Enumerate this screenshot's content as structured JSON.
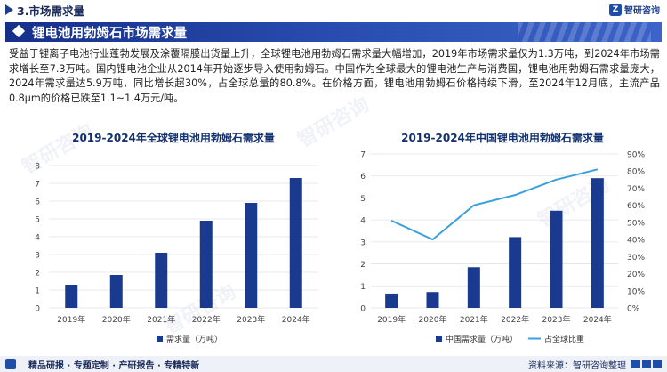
{
  "header": {
    "section_title": "3.市场需求量",
    "brand": "智研咨询",
    "banner_title": "锂电池用勃姆石市场需求量"
  },
  "paragraph": "受益于锂离子电池行业蓬勃发展及涂覆隔膜出货量上升，全球锂电池用勃姆石需求量大幅增加，2019年市场需求量仅为1.3万吨，到2024年市场需求增长至7.3万吨。国内锂电池企业从2014年开始逐步导入使用勃姆石。中国作为全球最大的锂电池生产与消费国，锂电池用勃姆石需求量庞大，2024年需求量达5.9万吨，同比增长超30%，占全球总量的80.8%。在价格方面，锂电池用勃姆石价格持续下滑，至2024年12月底，主流产品0.8μm的价格已跌至1.1~1.4万元/吨。",
  "chart_data": [
    {
      "type": "bar",
      "title": "2019-2024年全球锂电池用勃姆石需求量",
      "categories": [
        "2019年",
        "2020年",
        "2021年",
        "2022年",
        "2023年",
        "2024年"
      ],
      "series": [
        {
          "name": "需求量（万吨）",
          "values": [
            1.3,
            1.85,
            3.1,
            4.9,
            5.9,
            7.3
          ]
        }
      ],
      "ylim": [
        0,
        8
      ],
      "yticks": [
        "0",
        "1",
        "2",
        "3",
        "4",
        "5",
        "6",
        "7",
        "8"
      ],
      "color": "#1a3a8f"
    },
    {
      "type": "bar+line",
      "title": "2019-2024年中国锂电池用勃姆石需求量",
      "categories": [
        "2019年",
        "2020年",
        "2021年",
        "2022年",
        "2023年",
        "2024年"
      ],
      "series": [
        {
          "name": "中国需求量（万吨）",
          "type": "bar",
          "axis": "left",
          "values": [
            0.65,
            0.72,
            1.85,
            3.22,
            4.42,
            5.9
          ]
        },
        {
          "name": "占全球比重",
          "type": "line",
          "axis": "right",
          "values": [
            0.51,
            0.4,
            0.6,
            0.66,
            0.75,
            0.81
          ]
        }
      ],
      "ylim_left": [
        0,
        7
      ],
      "ylim_right": [
        0,
        0.9
      ],
      "yticks_left": [
        "0",
        "1",
        "2",
        "3",
        "4",
        "5",
        "6",
        "7"
      ],
      "yticks_right": [
        "0%",
        "10%",
        "20%",
        "30%",
        "40%",
        "50%",
        "60%",
        "70%",
        "80%",
        "90%"
      ],
      "bar_color": "#1a3a8f",
      "line_color": "#3aa0dc"
    }
  ],
  "footer": {
    "left": "精品研报 · 专题定制 · 产研报告 · 专精特新",
    "right": "资料来源：智研咨询整理"
  }
}
